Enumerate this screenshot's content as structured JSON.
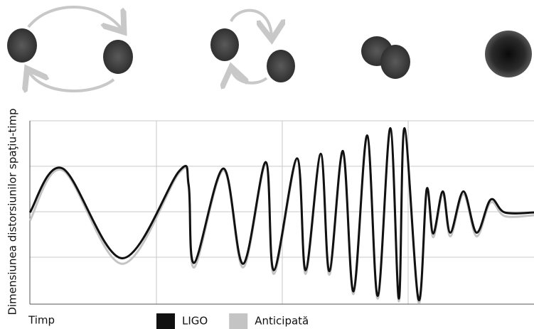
{
  "chart_data": {
    "type": "line",
    "y_label": "Dimensiunea distorsiunilor spaţiu-timp",
    "x_label": "Timp",
    "xlim": [
      0,
      100
    ],
    "ylim": [
      -1,
      1
    ],
    "x": [
      0,
      6.5,
      18.3,
      29.6,
      31.5,
      32.6,
      38.4,
      42.3,
      46.8,
      48.4,
      53.0,
      54.7,
      57.7,
      59.4,
      62.1,
      64.2,
      66.9,
      69.0,
      71.5,
      73.2,
      74.3,
      77.1,
      78.7,
      80.0,
      81.9,
      83.4,
      86.0,
      88.6,
      91.4,
      94.2,
      100
    ],
    "series": [
      {
        "name": "Anticipată",
        "color": "#c4c4c4",
        "values": [
          -0.09,
          0.46,
          -0.56,
          0.43,
          0.27,
          -0.6,
          0.46,
          -0.6,
          0.53,
          -0.67,
          0.57,
          -0.67,
          0.62,
          -0.68,
          0.65,
          -0.89,
          0.82,
          -0.94,
          0.9,
          -0.97,
          0.9,
          -0.98,
          0.22,
          -0.27,
          0.2,
          -0.26,
          0.2,
          -0.26,
          0.11,
          -0.04,
          -0.03
        ]
      },
      {
        "name": "LIGO",
        "color": "#111111",
        "values": [
          0,
          0.48,
          -0.5,
          0.45,
          0.3,
          -0.55,
          0.48,
          -0.56,
          0.55,
          -0.63,
          0.59,
          -0.63,
          0.64,
          -0.64,
          0.67,
          -0.86,
          0.84,
          -0.91,
          0.92,
          -0.94,
          0.92,
          -0.95,
          0.25,
          -0.23,
          0.23,
          -0.22,
          0.23,
          -0.22,
          0.14,
          0,
          0
        ]
      }
    ],
    "legend_order": [
      1,
      0
    ]
  }
}
